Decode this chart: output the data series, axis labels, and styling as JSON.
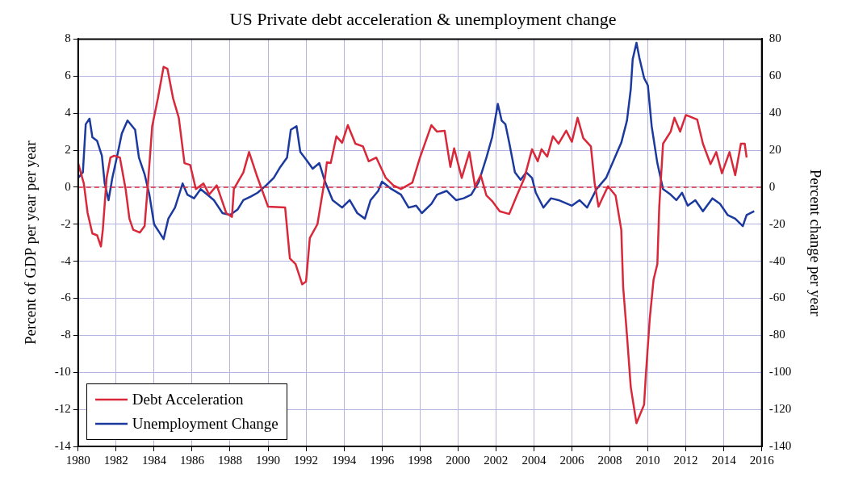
{
  "chart_data": {
    "type": "line",
    "title": "US Private debt acceleration & unemployment change",
    "ylabel": "Percent of GDP per year per year",
    "y2label": "Percent change per year",
    "xlim": [
      1980,
      2016
    ],
    "xticks": [
      1980,
      1982,
      1984,
      1986,
      1988,
      1990,
      1992,
      1994,
      1996,
      1998,
      2000,
      2002,
      2004,
      2006,
      2008,
      2010,
      2012,
      2014,
      2016
    ],
    "ylim": [
      -14,
      8
    ],
    "yticks": [
      -14,
      -12,
      -10,
      -8,
      -6,
      -4,
      -2,
      0,
      2,
      4,
      6,
      8
    ],
    "y2lim": [
      -140,
      80
    ],
    "y2ticks": [
      -140,
      -120,
      -100,
      -80,
      -60,
      -40,
      -20,
      0,
      20,
      40,
      60,
      80
    ],
    "grid": true,
    "legend": "bottom left",
    "ref_lines": [
      {
        "axis": "y",
        "value": 0,
        "color": "#d9283a",
        "line_style": "dashed"
      }
    ],
    "series": [
      {
        "name": "Debt Acceleration",
        "color": "#d9283a",
        "x": [
          1980.0,
          1980.3,
          1980.5,
          1980.75,
          1981.0,
          1981.2,
          1981.3,
          1981.5,
          1981.7,
          1981.9,
          1982.2,
          1982.5,
          1982.7,
          1982.9,
          1983.25,
          1983.5,
          1983.7,
          1983.9,
          1984.2,
          1984.5,
          1984.7,
          1985.0,
          1985.3,
          1985.6,
          1985.9,
          1986.2,
          1986.6,
          1986.9,
          1987.3,
          1987.8,
          1988.1,
          1988.2,
          1988.7,
          1989.0,
          1989.4,
          1990.0,
          1990.9,
          1991.15,
          1991.45,
          1991.8,
          1992.0,
          1992.2,
          1992.6,
          1993.0,
          1993.1,
          1993.3,
          1993.6,
          1993.9,
          1994.2,
          1994.6,
          1995.0,
          1995.3,
          1995.7,
          1996.2,
          1996.6,
          1997.0,
          1997.6,
          1998.0,
          1998.6,
          1998.9,
          1999.3,
          1999.6,
          1999.8,
          2000.2,
          2000.6,
          2000.9,
          2001.2,
          2001.5,
          2001.8,
          2002.2,
          2002.7,
          2003.1,
          2003.5,
          2003.9,
          2004.2,
          2004.4,
          2004.7,
          2005.0,
          2005.3,
          2005.7,
          2006.0,
          2006.3,
          2006.6,
          2007.0,
          2007.2,
          2007.4,
          2007.6,
          2007.9,
          2008.3,
          2008.6,
          2008.7,
          2008.9,
          2009.1,
          2009.4,
          2009.8,
          2009.9,
          2010.1,
          2010.3,
          2010.5,
          2010.6,
          2010.8,
          2011.2,
          2011.4,
          2011.7,
          2012.0,
          2012.6,
          2012.9,
          2013.3,
          2013.6,
          2013.9,
          2014.3,
          2014.6,
          2014.9,
          2015.1,
          2015.2
        ],
        "values": [
          1.3,
          0.2,
          -1.4,
          -2.5,
          -2.6,
          -3.2,
          -2.3,
          0.5,
          1.6,
          1.7,
          1.6,
          -0.1,
          -1.7,
          -2.3,
          -2.45,
          -2.1,
          0.5,
          3.3,
          4.8,
          6.5,
          6.4,
          4.8,
          3.75,
          1.3,
          1.2,
          -0.1,
          0.2,
          -0.4,
          0.1,
          -1.4,
          -1.6,
          -0.1,
          0.8,
          1.9,
          0.65,
          -1.05,
          -1.1,
          -3.85,
          -4.15,
          -5.25,
          -5.1,
          -2.75,
          -2.0,
          0.5,
          1.35,
          1.3,
          2.75,
          2.4,
          3.35,
          2.35,
          2.2,
          1.4,
          1.6,
          0.5,
          0.1,
          -0.1,
          0.25,
          1.6,
          3.35,
          3.0,
          3.05,
          1.1,
          2.1,
          0.5,
          1.9,
          0.05,
          0.65,
          -0.45,
          -0.75,
          -1.3,
          -1.45,
          -0.45,
          0.5,
          2.05,
          1.4,
          2.05,
          1.65,
          2.75,
          2.35,
          3.05,
          2.45,
          3.75,
          2.65,
          2.2,
          0.2,
          -1.05,
          -0.6,
          0.05,
          -0.45,
          -2.3,
          -5.4,
          -8.0,
          -10.8,
          -12.75,
          -11.75,
          -10.05,
          -7.1,
          -5.0,
          -4.15,
          -1.05,
          2.35,
          3.0,
          3.75,
          3.0,
          3.9,
          3.65,
          2.35,
          1.25,
          1.9,
          0.75,
          1.9,
          0.65,
          2.35,
          2.35,
          1.6
        ]
      },
      {
        "name": "Unemployment Change",
        "color": "#1c3a9e",
        "axis": "y2",
        "x": [
          1980.0,
          1980.25,
          1980.4,
          1980.6,
          1980.75,
          1981.0,
          1981.25,
          1981.4,
          1981.6,
          1981.8,
          1982.1,
          1982.3,
          1982.6,
          1983.0,
          1983.2,
          1983.5,
          1983.75,
          1984.0,
          1984.25,
          1984.5,
          1984.75,
          1985.1,
          1985.5,
          1985.75,
          1986.1,
          1986.45,
          1986.8,
          1987.15,
          1987.6,
          1988.0,
          1988.4,
          1988.7,
          1989.1,
          1989.45,
          1989.9,
          1990.3,
          1990.65,
          1991.0,
          1991.2,
          1991.5,
          1991.7,
          1992.0,
          1992.35,
          1992.7,
          1993.0,
          1993.4,
          1993.9,
          1994.3,
          1994.7,
          1995.1,
          1995.4,
          1995.8,
          1996.0,
          1996.5,
          1997.0,
          1997.4,
          1997.8,
          1998.1,
          1998.6,
          1998.9,
          1999.4,
          1999.9,
          2000.3,
          2000.7,
          2001.1,
          2001.5,
          2001.8,
          2002.1,
          2002.3,
          2002.5,
          2002.7,
          2003.0,
          2003.3,
          2003.6,
          2003.9,
          2004.1,
          2004.5,
          2004.9,
          2005.3,
          2006.0,
          2006.4,
          2006.8,
          2007.3,
          2007.8,
          2008.3,
          2008.6,
          2008.9,
          2009.1,
          2009.2,
          2009.4,
          2009.55,
          2009.8,
          2010.0,
          2010.2,
          2010.5,
          2010.8,
          2011.2,
          2011.5,
          2011.8,
          2012.1,
          2012.5,
          2012.9,
          2013.4,
          2013.8,
          2014.2,
          2014.6,
          2015.0,
          2015.2,
          2015.6
        ],
        "values": [
          5,
          8,
          34,
          37,
          27,
          25,
          17,
          2,
          -7,
          5,
          19,
          29,
          36,
          31,
          16,
          7,
          -4,
          -20,
          -24,
          -28,
          -17,
          -11,
          2,
          -4,
          -6,
          -1,
          -4,
          -7,
          -14,
          -15,
          -12,
          -7,
          -5,
          -3,
          1,
          5,
          11,
          16,
          31,
          33,
          19,
          15,
          10,
          13,
          3,
          -7,
          -11,
          -7,
          -14,
          -17,
          -7,
          -2,
          3,
          -1,
          -4,
          -11,
          -10,
          -14,
          -9,
          -4,
          -2,
          -7,
          -6,
          -4,
          3,
          16,
          27,
          45,
          36,
          34,
          24,
          8,
          4,
          8,
          5,
          -3,
          -11,
          -6,
          -7,
          -10,
          -7,
          -11,
          -1,
          5,
          17,
          24,
          36,
          53,
          69,
          78,
          70,
          59,
          55,
          33,
          13,
          -1,
          -4,
          -7,
          -3,
          -10,
          -7,
          -13,
          -6,
          -9,
          -15,
          -17,
          -21,
          -15,
          -13
        ]
      }
    ]
  }
}
